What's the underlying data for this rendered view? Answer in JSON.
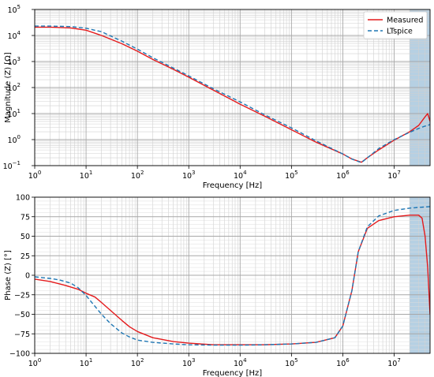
{
  "chart_data": [
    {
      "type": "line",
      "xlabel": "Frequency [Hz]",
      "ylabel": "Magnitude (Z) [Ω]",
      "xscale": "log",
      "yscale": "log",
      "xlim": [
        1,
        50000000
      ],
      "ylim": [
        0.1,
        100000
      ],
      "x_ticks": [
        {
          "v": 1,
          "b": "10",
          "e": "0"
        },
        {
          "v": 10,
          "b": "10",
          "e": "1"
        },
        {
          "v": 100,
          "b": "10",
          "e": "2"
        },
        {
          "v": 1000,
          "b": "10",
          "e": "3"
        },
        {
          "v": 10000,
          "b": "10",
          "e": "4"
        },
        {
          "v": 100000,
          "b": "10",
          "e": "5"
        },
        {
          "v": 1000000,
          "b": "10",
          "e": "6"
        },
        {
          "v": 10000000,
          "b": "10",
          "e": "7"
        }
      ],
      "y_ticks": [
        {
          "v": 0.1,
          "b": "10",
          "e": "−1"
        },
        {
          "v": 1,
          "b": "10",
          "e": "0"
        },
        {
          "v": 10,
          "b": "10",
          "e": "1"
        },
        {
          "v": 100,
          "b": "10",
          "e": "2"
        },
        {
          "v": 1000,
          "b": "10",
          "e": "3"
        },
        {
          "v": 10000,
          "b": "10",
          "e": "4"
        },
        {
          "v": 100000,
          "b": "10",
          "e": "5"
        }
      ],
      "grid": true,
      "legend": "top-right",
      "shaded_region": {
        "x": [
          20000000,
          50000000
        ],
        "color": "#a9c8de"
      },
      "series": [
        {
          "name": "Measured",
          "color": "#e41a1c",
          "style": "solid",
          "x": [
            1,
            2,
            5,
            10,
            20,
            50,
            100,
            200,
            500,
            1000,
            3000,
            10000,
            30000,
            100000,
            300000,
            1000000,
            1500000,
            2300000,
            3000000,
            5000000,
            10000000,
            20000000,
            30000000,
            40000000,
            45000000,
            50000000
          ],
          "y": [
            21000,
            21000,
            19500,
            16000,
            10000,
            4800,
            2500,
            1200,
            500,
            250,
            80,
            23,
            8,
            2.4,
            0.8,
            0.28,
            0.18,
            0.135,
            0.2,
            0.4,
            0.95,
            2.0,
            3.5,
            7.5,
            10,
            5
          ]
        },
        {
          "name": "LTspice",
          "color": "#1f77b4",
          "style": "dashed",
          "x": [
            1,
            2,
            5,
            10,
            20,
            50,
            100,
            200,
            500,
            1000,
            3000,
            10000,
            30000,
            100000,
            300000,
            1000000,
            1500000,
            2300000,
            3000000,
            5000000,
            10000000,
            20000000,
            30000000,
            40000000,
            50000000
          ],
          "y": [
            23000,
            23000,
            22000,
            19000,
            14000,
            6000,
            3000,
            1400,
            560,
            280,
            90,
            28,
            9,
            2.8,
            0.9,
            0.28,
            0.18,
            0.13,
            0.2,
            0.45,
            1.0,
            1.9,
            2.7,
            3.3,
            3.8
          ]
        }
      ]
    },
    {
      "type": "line",
      "xlabel": "Frequency [Hz]",
      "ylabel": "Phase (Z) [°]",
      "xscale": "log",
      "xlim": [
        1,
        50000000
      ],
      "ylim": [
        -100,
        100
      ],
      "x_ticks": [
        {
          "v": 1,
          "b": "10",
          "e": "0"
        },
        {
          "v": 10,
          "b": "10",
          "e": "1"
        },
        {
          "v": 100,
          "b": "10",
          "e": "2"
        },
        {
          "v": 1000,
          "b": "10",
          "e": "3"
        },
        {
          "v": 10000,
          "b": "10",
          "e": "4"
        },
        {
          "v": 100000,
          "b": "10",
          "e": "5"
        },
        {
          "v": 1000000,
          "b": "10",
          "e": "6"
        },
        {
          "v": 10000000,
          "b": "10",
          "e": "7"
        }
      ],
      "y_ticks": [
        "−100",
        "−75",
        "−50",
        "−25",
        "0",
        "25",
        "50",
        "75",
        "100"
      ],
      "y_tick_values": [
        -100,
        -75,
        -50,
        -25,
        0,
        25,
        50,
        75,
        100
      ],
      "grid": true,
      "shaded_region": {
        "x": [
          20000000,
          50000000
        ],
        "color": "#a9c8de"
      },
      "series": [
        {
          "name": "Measured",
          "color": "#e41a1c",
          "style": "solid",
          "x": [
            1,
            2,
            4,
            7,
            10,
            15,
            20,
            30,
            50,
            70,
            100,
            200,
            500,
            1000,
            3000,
            10000,
            30000,
            100000,
            300000,
            700000,
            1000000,
            1500000,
            2000000,
            3000000,
            5000000,
            10000000,
            20000000,
            30000000,
            35000000,
            40000000,
            45000000,
            50000000
          ],
          "y": [
            -5,
            -8,
            -13,
            -18,
            -23,
            -28,
            -35,
            -45,
            -58,
            -66,
            -72,
            -80,
            -85,
            -87,
            -89,
            -89,
            -89,
            -88,
            -86,
            -80,
            -65,
            -20,
            30,
            60,
            70,
            75,
            77,
            77,
            73,
            50,
            10,
            -50
          ]
        },
        {
          "name": "LTspice",
          "color": "#1f77b4",
          "style": "dashed",
          "x": [
            1,
            2,
            3,
            5,
            7,
            10,
            15,
            20,
            30,
            50,
            70,
            100,
            200,
            500,
            1000,
            3000,
            10000,
            30000,
            100000,
            300000,
            700000,
            1000000,
            1500000,
            2000000,
            3000000,
            5000000,
            10000000,
            20000000,
            50000000
          ],
          "y": [
            -2,
            -4,
            -6,
            -10,
            -16,
            -26,
            -40,
            -50,
            -62,
            -74,
            -79,
            -83,
            -86,
            -88,
            -89,
            -89.5,
            -89.5,
            -89,
            -88,
            -86,
            -80,
            -65,
            -20,
            30,
            62,
            76,
            83,
            86,
            88
          ]
        }
      ]
    }
  ]
}
